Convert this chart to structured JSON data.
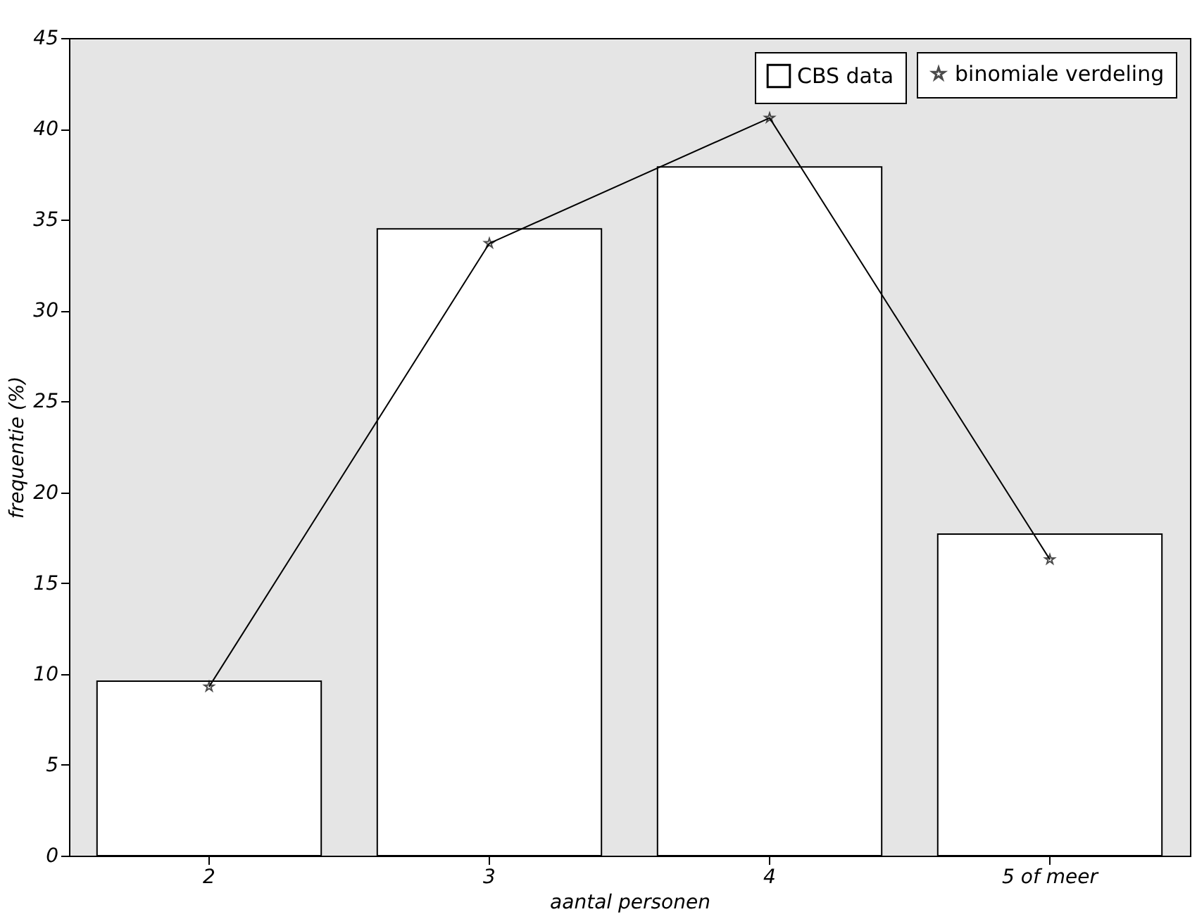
{
  "chart_data": {
    "type": "bar",
    "xlabel": "aantal personen",
    "ylabel": "frequentie (%)",
    "categories": [
      "2",
      "3",
      "4",
      "5 of meer"
    ],
    "series": [
      {
        "name": "CBS data",
        "color": "#ffffff",
        "values": [
          9.6,
          34.5,
          37.9,
          17.7
        ]
      },
      {
        "name": "binomiale verdeling",
        "type": "line",
        "color": "#000000",
        "values": [
          9.3,
          33.7,
          40.6,
          16.3
        ]
      }
    ],
    "ylim": [
      0,
      45
    ],
    "yticks": [
      0,
      5,
      10,
      15,
      20,
      25,
      30,
      35,
      40,
      45
    ],
    "grid": false,
    "legend": "top right",
    "marker": "star",
    "line_style": "solid"
  }
}
